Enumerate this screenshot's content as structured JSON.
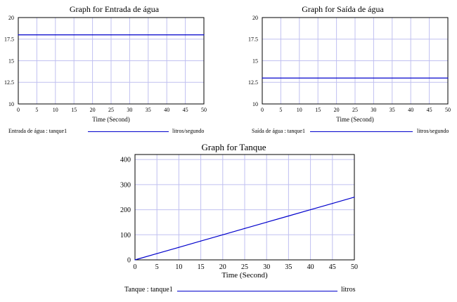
{
  "chart_data": [
    {
      "type": "line",
      "title": "Graph for Entrada de água",
      "xlabel": "Time (Second)",
      "ylabel": "",
      "xlim": [
        0,
        50
      ],
      "ylim": [
        10,
        20
      ],
      "x_ticks": [
        0,
        5,
        10,
        15,
        20,
        25,
        30,
        35,
        40,
        45,
        50
      ],
      "y_ticks": [
        10,
        12.5,
        15,
        17.5,
        20
      ],
      "y_tick_labels": [
        "10",
        "12.5",
        "15",
        "17.5",
        "20"
      ],
      "grid": true,
      "series": [
        {
          "name": "Entrada de água : tanque1",
          "unit": "litros/segundo",
          "color": "#0000cc",
          "x": [
            0,
            50
          ],
          "y": [
            18,
            18
          ]
        }
      ]
    },
    {
      "type": "line",
      "title": "Graph for Saída de água",
      "xlabel": "Time (Second)",
      "ylabel": "",
      "xlim": [
        0,
        50
      ],
      "ylim": [
        10,
        20
      ],
      "x_ticks": [
        0,
        5,
        10,
        15,
        20,
        25,
        30,
        35,
        40,
        45,
        50
      ],
      "y_ticks": [
        10,
        12.5,
        15,
        17.5,
        20
      ],
      "y_tick_labels": [
        "10",
        "12.5",
        "15",
        "17.5",
        "20"
      ],
      "grid": true,
      "series": [
        {
          "name": "Saída de água : tanque1",
          "unit": "litros/segundo",
          "color": "#0000cc",
          "x": [
            0,
            50
          ],
          "y": [
            13,
            13
          ]
        }
      ]
    },
    {
      "type": "line",
      "title": "Graph for Tanque",
      "xlabel": "Time (Second)",
      "ylabel": "",
      "xlim": [
        0,
        50
      ],
      "ylim": [
        0,
        420
      ],
      "x_ticks": [
        0,
        5,
        10,
        15,
        20,
        25,
        30,
        35,
        40,
        45,
        50
      ],
      "y_ticks": [
        0,
        100,
        200,
        300,
        400
      ],
      "y_tick_labels": [
        "0",
        "100",
        "200",
        "300",
        "400"
      ],
      "grid": true,
      "series": [
        {
          "name": "Tanque : tanque1",
          "unit": "litros",
          "color": "#0000cc",
          "x": [
            0,
            5,
            10,
            15,
            20,
            25,
            30,
            35,
            40,
            45,
            50
          ],
          "y": [
            0,
            25,
            50,
            75,
            100,
            125,
            150,
            175,
            200,
            225,
            250
          ]
        }
      ]
    }
  ]
}
